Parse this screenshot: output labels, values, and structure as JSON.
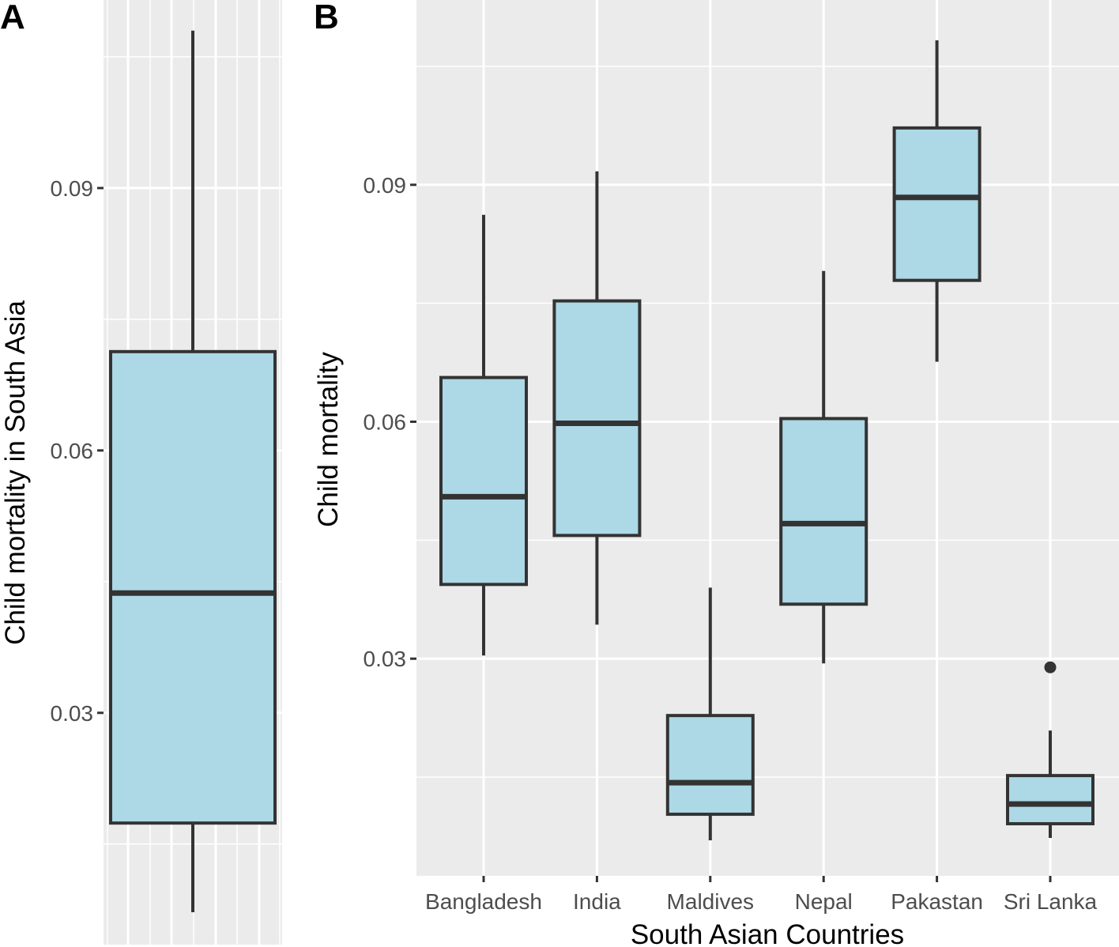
{
  "figure": {
    "panels": [
      "A",
      "B"
    ]
  },
  "chart_data": [
    {
      "panel": "A",
      "type": "box",
      "title": "",
      "xlabel": "",
      "ylabel": "Child mortality in South Asia",
      "ylim": [
        0.0035,
        0.1115
      ],
      "yticks": [
        0.03,
        0.06,
        0.09
      ],
      "ytick_labels": [
        "0.03",
        "0.06",
        "0.09"
      ],
      "grid": true,
      "fill_color": "#add8e6",
      "line_color": "#333333",
      "panel_bg": "#ebebeb",
      "boxes": [
        {
          "category": "",
          "whisker_low": 0.0072,
          "q1": 0.0174,
          "median": 0.0437,
          "q3": 0.0713,
          "whisker_high": 0.108,
          "outliers": []
        }
      ]
    },
    {
      "panel": "B",
      "type": "box",
      "title": "",
      "xlabel": "South Asian Countries",
      "ylabel": "Child mortality",
      "ylim": [
        0.0025,
        0.1134
      ],
      "yticks": [
        0.03,
        0.06,
        0.09
      ],
      "ytick_labels": [
        "0.03",
        "0.06",
        "0.09"
      ],
      "categories": [
        "Bangladesh",
        "India",
        "Maldives",
        "Nepal",
        "Pakastan",
        "Sri Lanka"
      ],
      "grid": true,
      "fill_color": "#add8e6",
      "line_color": "#333333",
      "panel_bg": "#ebebeb",
      "boxes": [
        {
          "category": "Bangladesh",
          "whisker_low": 0.0304,
          "q1": 0.0394,
          "median": 0.0505,
          "q3": 0.0656,
          "whisker_high": 0.0862,
          "outliers": []
        },
        {
          "category": "India",
          "whisker_low": 0.0343,
          "q1": 0.0456,
          "median": 0.0598,
          "q3": 0.0753,
          "whisker_high": 0.0917,
          "outliers": []
        },
        {
          "category": "Maldives",
          "whisker_low": 0.007,
          "q1": 0.0103,
          "median": 0.0143,
          "q3": 0.0228,
          "whisker_high": 0.039,
          "outliers": []
        },
        {
          "category": "Nepal",
          "whisker_low": 0.0294,
          "q1": 0.0369,
          "median": 0.0471,
          "q3": 0.0604,
          "whisker_high": 0.0791,
          "outliers": []
        },
        {
          "category": "Pakastan",
          "whisker_low": 0.0676,
          "q1": 0.0779,
          "median": 0.0884,
          "q3": 0.0972,
          "whisker_high": 0.1083,
          "outliers": []
        },
        {
          "category": "Sri Lanka",
          "whisker_low": 0.0073,
          "q1": 0.0091,
          "median": 0.0116,
          "q3": 0.0152,
          "whisker_high": 0.0209,
          "outliers": [
            0.0289
          ]
        }
      ]
    }
  ]
}
